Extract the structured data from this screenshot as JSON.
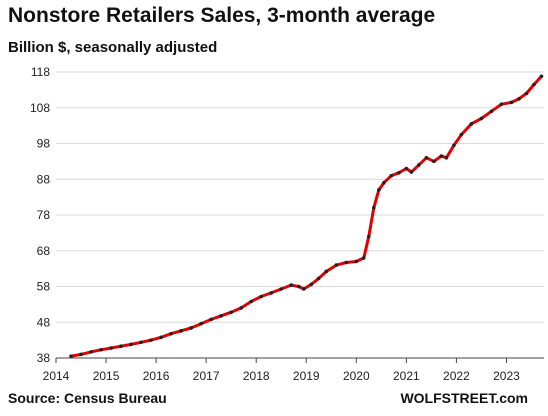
{
  "chart_data": {
    "type": "line",
    "title": "Nonstore Retailers Sales, 3-month average",
    "subtitle": "Billion $, seasonally adjusted",
    "ylabel": "Billion $",
    "ylim": [
      38,
      118
    ],
    "xlim": [
      2014.0,
      2023.75
    ],
    "yticks": [
      38,
      48,
      58,
      68,
      78,
      88,
      98,
      108,
      118
    ],
    "xticks": [
      "2014",
      "2015",
      "2016",
      "2017",
      "2018",
      "2019",
      "2020",
      "2021",
      "2022",
      "2023"
    ],
    "grid": "horizontal",
    "line_color": "#e00000",
    "marker_color": "#222222",
    "series": [
      {
        "x": [
          2014.3,
          2014.5,
          2014.7,
          2014.9,
          2015.1,
          2015.3,
          2015.5,
          2015.7,
          2015.9,
          2016.1,
          2016.3,
          2016.5,
          2016.7,
          2016.9,
          2017.1,
          2017.3,
          2017.5,
          2017.7,
          2017.9,
          2018.1,
          2018.3,
          2018.5,
          2018.7,
          2018.85,
          2018.95,
          2019.1,
          2019.25,
          2019.4,
          2019.6,
          2019.8,
          2020.0,
          2020.15,
          2020.25,
          2020.35,
          2020.45,
          2020.55,
          2020.7,
          2020.85,
          2021.0,
          2021.1,
          2021.25,
          2021.4,
          2021.55,
          2021.7,
          2021.8,
          2021.95,
          2022.1,
          2022.3,
          2022.5,
          2022.7,
          2022.9,
          2023.1,
          2023.25,
          2023.4,
          2023.55,
          2023.7
        ],
        "y": [
          38.5,
          39.0,
          39.7,
          40.3,
          40.8,
          41.3,
          41.8,
          42.4,
          43.0,
          43.8,
          44.8,
          45.6,
          46.4,
          47.6,
          48.8,
          49.8,
          50.8,
          52.0,
          53.8,
          55.2,
          56.2,
          57.3,
          58.4,
          58.0,
          57.3,
          58.6,
          60.3,
          62.2,
          64.0,
          64.7,
          65.0,
          66.0,
          72.0,
          80.0,
          85.0,
          87.0,
          89.0,
          89.8,
          91.0,
          90.0,
          92.0,
          94.0,
          93.0,
          94.5,
          94.0,
          97.5,
          100.5,
          103.5,
          105.0,
          107.0,
          109.0,
          109.5,
          110.5,
          112.0,
          114.5,
          116.8
        ]
      }
    ],
    "source": "Source: Census Bureau",
    "brand": "WOLFSTREET.com"
  }
}
